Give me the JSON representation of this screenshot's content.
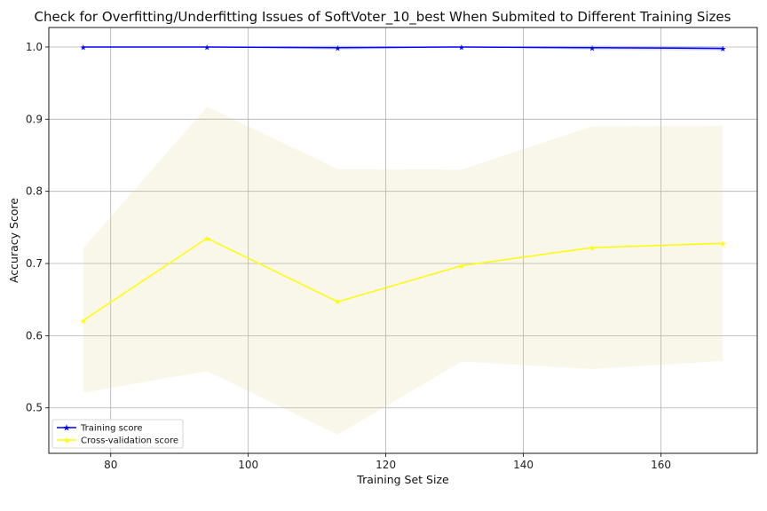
{
  "chart_data": {
    "type": "line",
    "title": "Check for Overfitting/Underfitting Issues of SoftVoter_10_best When Submited to Different Training Sizes",
    "xlabel": "Training Set Size",
    "ylabel": "Accuracy Score",
    "xlim": [
      71,
      174
    ],
    "ylim": [
      0.437,
      1.027
    ],
    "xticks": [
      80,
      100,
      120,
      140,
      160
    ],
    "yticks": [
      0.5,
      0.6,
      0.7,
      0.8,
      0.9,
      1.0
    ],
    "xtick_labels": [
      "80",
      "100",
      "120",
      "140",
      "160"
    ],
    "ytick_labels": [
      "0.5",
      "0.6",
      "0.7",
      "0.8",
      "0.9",
      "1.0"
    ],
    "grid": true,
    "legend_position": "lower-left",
    "x": [
      76,
      94,
      113,
      131,
      150,
      169
    ],
    "series": [
      {
        "name": "Training score",
        "color": "#0000ff",
        "band_color": "#0000ff",
        "values": [
          1.0,
          1.0,
          0.999,
          1.0,
          0.999,
          0.998
        ],
        "band_low": [
          1.0,
          1.0,
          0.996,
          1.0,
          0.996,
          0.995
        ],
        "band_high": [
          1.0,
          1.0,
          1.002,
          1.0,
          1.002,
          1.001
        ]
      },
      {
        "name": "Cross-validation score",
        "color": "#ffff00",
        "band_color": "#d6d18a",
        "values": [
          0.621,
          0.735,
          0.647,
          0.697,
          0.722,
          0.728
        ],
        "band_low": [
          0.521,
          0.551,
          0.463,
          0.564,
          0.554,
          0.565
        ],
        "band_high": [
          0.721,
          0.917,
          0.831,
          0.83,
          0.89,
          0.891
        ]
      }
    ]
  }
}
